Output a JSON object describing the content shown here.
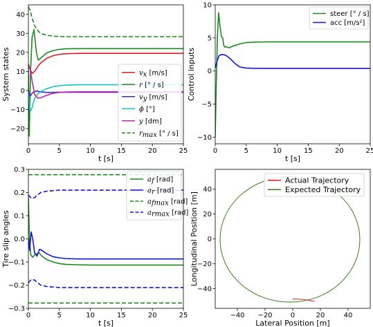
{
  "chart_data": [
    {
      "type": "line",
      "xlabel": "t [s]",
      "ylabel": "System states",
      "xlim": [
        0,
        25
      ],
      "ylim": [
        -28,
        45
      ],
      "xticks": [
        "0",
        "5",
        "10",
        "15",
        "20",
        "25"
      ],
      "yticks": [
        "−20",
        "−10",
        "0",
        "10",
        "20",
        "30",
        "40"
      ],
      "legend_position": "center-right",
      "series": [
        {
          "name": "v_x [m/s]",
          "sym": "v",
          "sub": "x",
          "unit": "[m/s]",
          "color": "#e41a1c",
          "dash": false,
          "x": [
            0,
            0.3,
            0.6,
            1,
            1.5,
            2,
            3,
            4,
            5,
            6,
            8,
            10,
            15,
            20,
            25
          ],
          "y": [
            14,
            11,
            9,
            10,
            12.5,
            14.5,
            17,
            18.3,
            19,
            19.3,
            19.5,
            19.5,
            19.5,
            19.5,
            19.5
          ]
        },
        {
          "name": "r [°/s]",
          "sym": "r",
          "sub": "",
          "unit": "[° / s]",
          "color": "#1a8a1a",
          "dash": false,
          "x": [
            0,
            0.15,
            0.35,
            0.6,
            0.9,
            1.1,
            1.3,
            1.6,
            2,
            2.5,
            3,
            4,
            5,
            6,
            8,
            10,
            15,
            20,
            25
          ],
          "y": [
            12,
            -24,
            10,
            28,
            32,
            26,
            20,
            16,
            17,
            18.5,
            19.8,
            21,
            21.6,
            21.9,
            22,
            22,
            22,
            22,
            22
          ]
        },
        {
          "name": "v_y [m/s]",
          "sym": "v",
          "sub": "y",
          "unit": "[m/s]",
          "color": "#2b2bcf",
          "dash": false,
          "x": [
            0,
            0.3,
            0.6,
            1,
            1.5,
            2,
            3,
            4,
            5,
            8,
            10,
            15,
            20,
            25
          ],
          "y": [
            0,
            -3,
            -1.5,
            -0.5,
            -0.3,
            -0.8,
            -1,
            -1,
            -0.9,
            -0.9,
            -0.9,
            -0.9,
            -0.9,
            -0.9
          ]
        },
        {
          "name": "phi [°]",
          "sym": "ϕ",
          "sub": "",
          "unit": "[°]",
          "color": "#17c0c8",
          "dash": false,
          "x": [
            0,
            0.3,
            0.6,
            1,
            1.5,
            2,
            3,
            4,
            5,
            6,
            8,
            10,
            15,
            20,
            25
          ],
          "y": [
            -1,
            -11,
            -9,
            -4,
            -2,
            -0.5,
            1,
            2,
            2.5,
            2.8,
            3,
            3,
            3,
            3,
            3
          ]
        },
        {
          "name": "y [dm]",
          "sym": "y",
          "sub": "",
          "unit": "[dm]",
          "color": "#c21fb5",
          "dash": false,
          "x": [
            0,
            0.3,
            0.6,
            1,
            1.5,
            2,
            3,
            4,
            5,
            6,
            8,
            10,
            15,
            20,
            25
          ],
          "y": [
            13,
            11,
            5,
            -2,
            -4,
            -3.8,
            -2.5,
            -1.5,
            -1,
            -0.8,
            -0.7,
            -0.7,
            -0.7,
            -0.7,
            -0.7
          ]
        },
        {
          "name": "r_max [°/s]",
          "sym": "r",
          "sub": "max",
          "unit": "[° / s]",
          "color": "#1a8a1a",
          "dash": true,
          "x": [
            0,
            0.3,
            0.6,
            1,
            1.5,
            2,
            3,
            4,
            5,
            6,
            8,
            10,
            15,
            20,
            25
          ],
          "y": [
            44,
            42,
            38,
            34,
            31.5,
            30,
            29,
            28.6,
            28.4,
            28.3,
            28.3,
            28.3,
            28.3,
            28.3,
            28.3
          ]
        }
      ]
    },
    {
      "type": "line",
      "xlabel": "t [s]",
      "ylabel": "Control inputs",
      "xlim": [
        0,
        25
      ],
      "ylim": [
        -11,
        10
      ],
      "xticks": [
        "0",
        "5",
        "10",
        "15",
        "20",
        "25"
      ],
      "yticks": [
        "−10",
        "−5",
        "0",
        "5",
        "10"
      ],
      "legend_position": "top-right",
      "series": [
        {
          "name": "steer [°/s]",
          "label": "steer [° / s]",
          "color": "#1a8a1a",
          "dash": false,
          "x": [
            0,
            0.15,
            0.35,
            0.55,
            0.75,
            1,
            1.2,
            1.4,
            1.6,
            1.8,
            2.2,
            3,
            4,
            5,
            6,
            8,
            10,
            15,
            20,
            25
          ],
          "y": [
            -10,
            -3,
            5,
            8.8,
            7,
            5.2,
            5,
            3.8,
            3.6,
            3.7,
            3.5,
            3.8,
            4.1,
            4.3,
            4.35,
            4.4,
            4.4,
            4.4,
            4.4,
            4.4
          ]
        },
        {
          "name": "acc [m/s²]",
          "label": "acc [m/s²]",
          "color": "#1010e0",
          "dash": false,
          "x": [
            0,
            0.3,
            0.6,
            1,
            1.5,
            2,
            2.5,
            3,
            3.5,
            4,
            5,
            6,
            8,
            10,
            15,
            20,
            25
          ],
          "y": [
            0.5,
            1.5,
            2.3,
            2.5,
            2.45,
            2.2,
            1.8,
            1.3,
            0.9,
            0.6,
            0.45,
            0.42,
            0.4,
            0.4,
            0.4,
            0.4,
            0.4
          ]
        }
      ]
    },
    {
      "type": "line",
      "xlabel": "t [s]",
      "ylabel": "Tire slip angles",
      "xlim": [
        0,
        25
      ],
      "ylim": [
        -0.3,
        0.3
      ],
      "xticks": [
        "0",
        "5",
        "10",
        "15",
        "20",
        "25"
      ],
      "yticks": [
        "−0.3",
        "−0.2",
        "−0.1",
        "0.0",
        "0.1",
        "0.2",
        "0.3"
      ],
      "legend_position": "top-right",
      "series": [
        {
          "name": "a_f [rad]",
          "sym": "a",
          "sub": "f",
          "unit": "[rad]",
          "color": "#1a8a1a",
          "dash": false,
          "x": [
            0,
            0.2,
            0.4,
            0.7,
            1,
            1.3,
            1.7,
            2.2,
            3,
            4,
            5,
            6,
            8,
            10,
            15,
            20,
            25
          ],
          "y": [
            0.18,
            -0.02,
            -0.07,
            -0.08,
            -0.07,
            -0.065,
            -0.06,
            -0.075,
            -0.09,
            -0.1,
            -0.107,
            -0.11,
            -0.112,
            -0.113,
            -0.113,
            -0.113,
            -0.113
          ]
        },
        {
          "name": "a_r [rad]",
          "sym": "a",
          "sub": "r",
          "unit": "[rad]",
          "color": "#1010e0",
          "dash": false,
          "x": [
            0,
            0.2,
            0.45,
            0.7,
            1,
            1.4,
            1.8,
            2.2,
            3,
            4,
            5,
            6,
            8,
            10,
            15,
            20,
            25
          ],
          "y": [
            0,
            -0.05,
            0.03,
            0,
            -0.06,
            -0.075,
            -0.045,
            -0.05,
            -0.065,
            -0.077,
            -0.082,
            -0.085,
            -0.087,
            -0.087,
            -0.087,
            -0.087,
            -0.087
          ]
        },
        {
          "name": "a_fmax [rad]",
          "sym": "a",
          "sub": "fmax",
          "unit": "[rad]",
          "color": "#1a8a1a",
          "dash": true,
          "x": [
            0,
            25
          ],
          "y": [
            0.277,
            0.277
          ]
        },
        {
          "name": "a_rmax [rad]",
          "sym": "a",
          "sub": "rmax",
          "unit": "[rad]",
          "color": "#1010e0",
          "dash": true,
          "x": [
            0,
            0.5,
            1,
            1.5,
            2,
            3,
            4,
            5,
            8,
            10,
            15,
            20,
            25
          ],
          "y": [
            0.19,
            0.175,
            0.178,
            0.19,
            0.2,
            0.206,
            0.208,
            0.21,
            0.21,
            0.21,
            0.21,
            0.21,
            0.21
          ]
        },
        {
          "name": "a_rmax (negative)",
          "sym": "",
          "sub": "",
          "unit": "",
          "color": "#1010e0",
          "dash": true,
          "nolegend": true,
          "x": [
            0,
            0.5,
            1,
            1.5,
            2,
            3,
            4,
            5,
            8,
            10,
            15,
            20,
            25
          ],
          "y": [
            -0.19,
            -0.175,
            -0.178,
            -0.19,
            -0.2,
            -0.206,
            -0.208,
            -0.21,
            -0.21,
            -0.21,
            -0.21,
            -0.21,
            -0.21
          ]
        },
        {
          "name": "a_fmax (negative)",
          "sym": "",
          "sub": "",
          "unit": "",
          "color": "#1a8a1a",
          "dash": true,
          "nolegend": true,
          "x": [
            0,
            25
          ],
          "y": [
            -0.277,
            -0.277
          ]
        }
      ]
    },
    {
      "type": "line",
      "xlabel": "Lateral Position [m]",
      "ylabel": "Longitudinal Position [m]",
      "xlim": [
        -56,
        56
      ],
      "ylim": [
        -56,
        56
      ],
      "xticks": [
        "−40",
        "−20",
        "0",
        "20",
        "40"
      ],
      "yticks": [
        "−40",
        "−20",
        "0",
        "20",
        "40"
      ],
      "legend_position": "top-right",
      "series": [
        {
          "name": "Expected Trajectory",
          "color": "#3a7d1a",
          "shape": "circle",
          "center": [
            -2,
            -0.5
          ],
          "radius": 50.5
        },
        {
          "name": "Actual Trajectory",
          "color": "#e41a1c",
          "shape": "segment",
          "x": [
            0,
            4,
            8,
            12,
            16
          ],
          "y": [
            -48.5,
            -48.6,
            -49,
            -49.6,
            -50.4
          ]
        }
      ]
    }
  ]
}
